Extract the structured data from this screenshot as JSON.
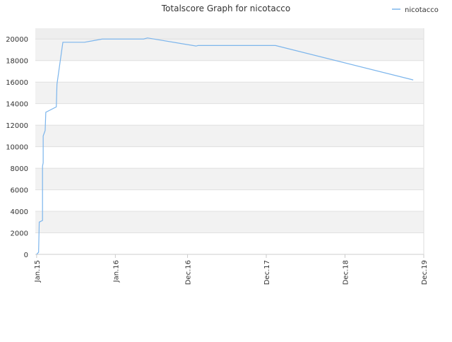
{
  "chart_data": {
    "type": "line",
    "title": "Totalscore Graph for nicotacco",
    "x": [
      0,
      0.3,
      0.4,
      0.9,
      0.9,
      1.0,
      1.0,
      1.3,
      1.4,
      3.0,
      3.1,
      4.0,
      7.3,
      10.0,
      16.3,
      16.9,
      24.3,
      24.6,
      36.4,
      57.4
    ],
    "series": [
      {
        "name": "nicotacco",
        "color": "#7cb5ec",
        "values": [
          0,
          200,
          3000,
          3150,
          8200,
          8500,
          11000,
          11500,
          13200,
          13700,
          15800,
          19700,
          19700,
          20000,
          20000,
          20100,
          19350,
          19400,
          19400,
          16200
        ]
      }
    ],
    "xlim": [
      -0.2,
      59
    ],
    "xticks": [
      {
        "value": 0,
        "label": "Jan.15"
      },
      {
        "value": 12,
        "label": "Jan.16"
      },
      {
        "value": 23,
        "label": "Dec.16"
      },
      {
        "value": 35,
        "label": "Dec.17"
      },
      {
        "value": 47,
        "label": "Dec.18"
      },
      {
        "value": 59,
        "label": "Dec.19"
      }
    ],
    "ylim": [
      0,
      21000
    ],
    "yticks": [
      0,
      2000,
      4000,
      6000,
      8000,
      10000,
      12000,
      14000,
      16000,
      18000,
      20000
    ],
    "grid": true,
    "legend": "top-right"
  }
}
